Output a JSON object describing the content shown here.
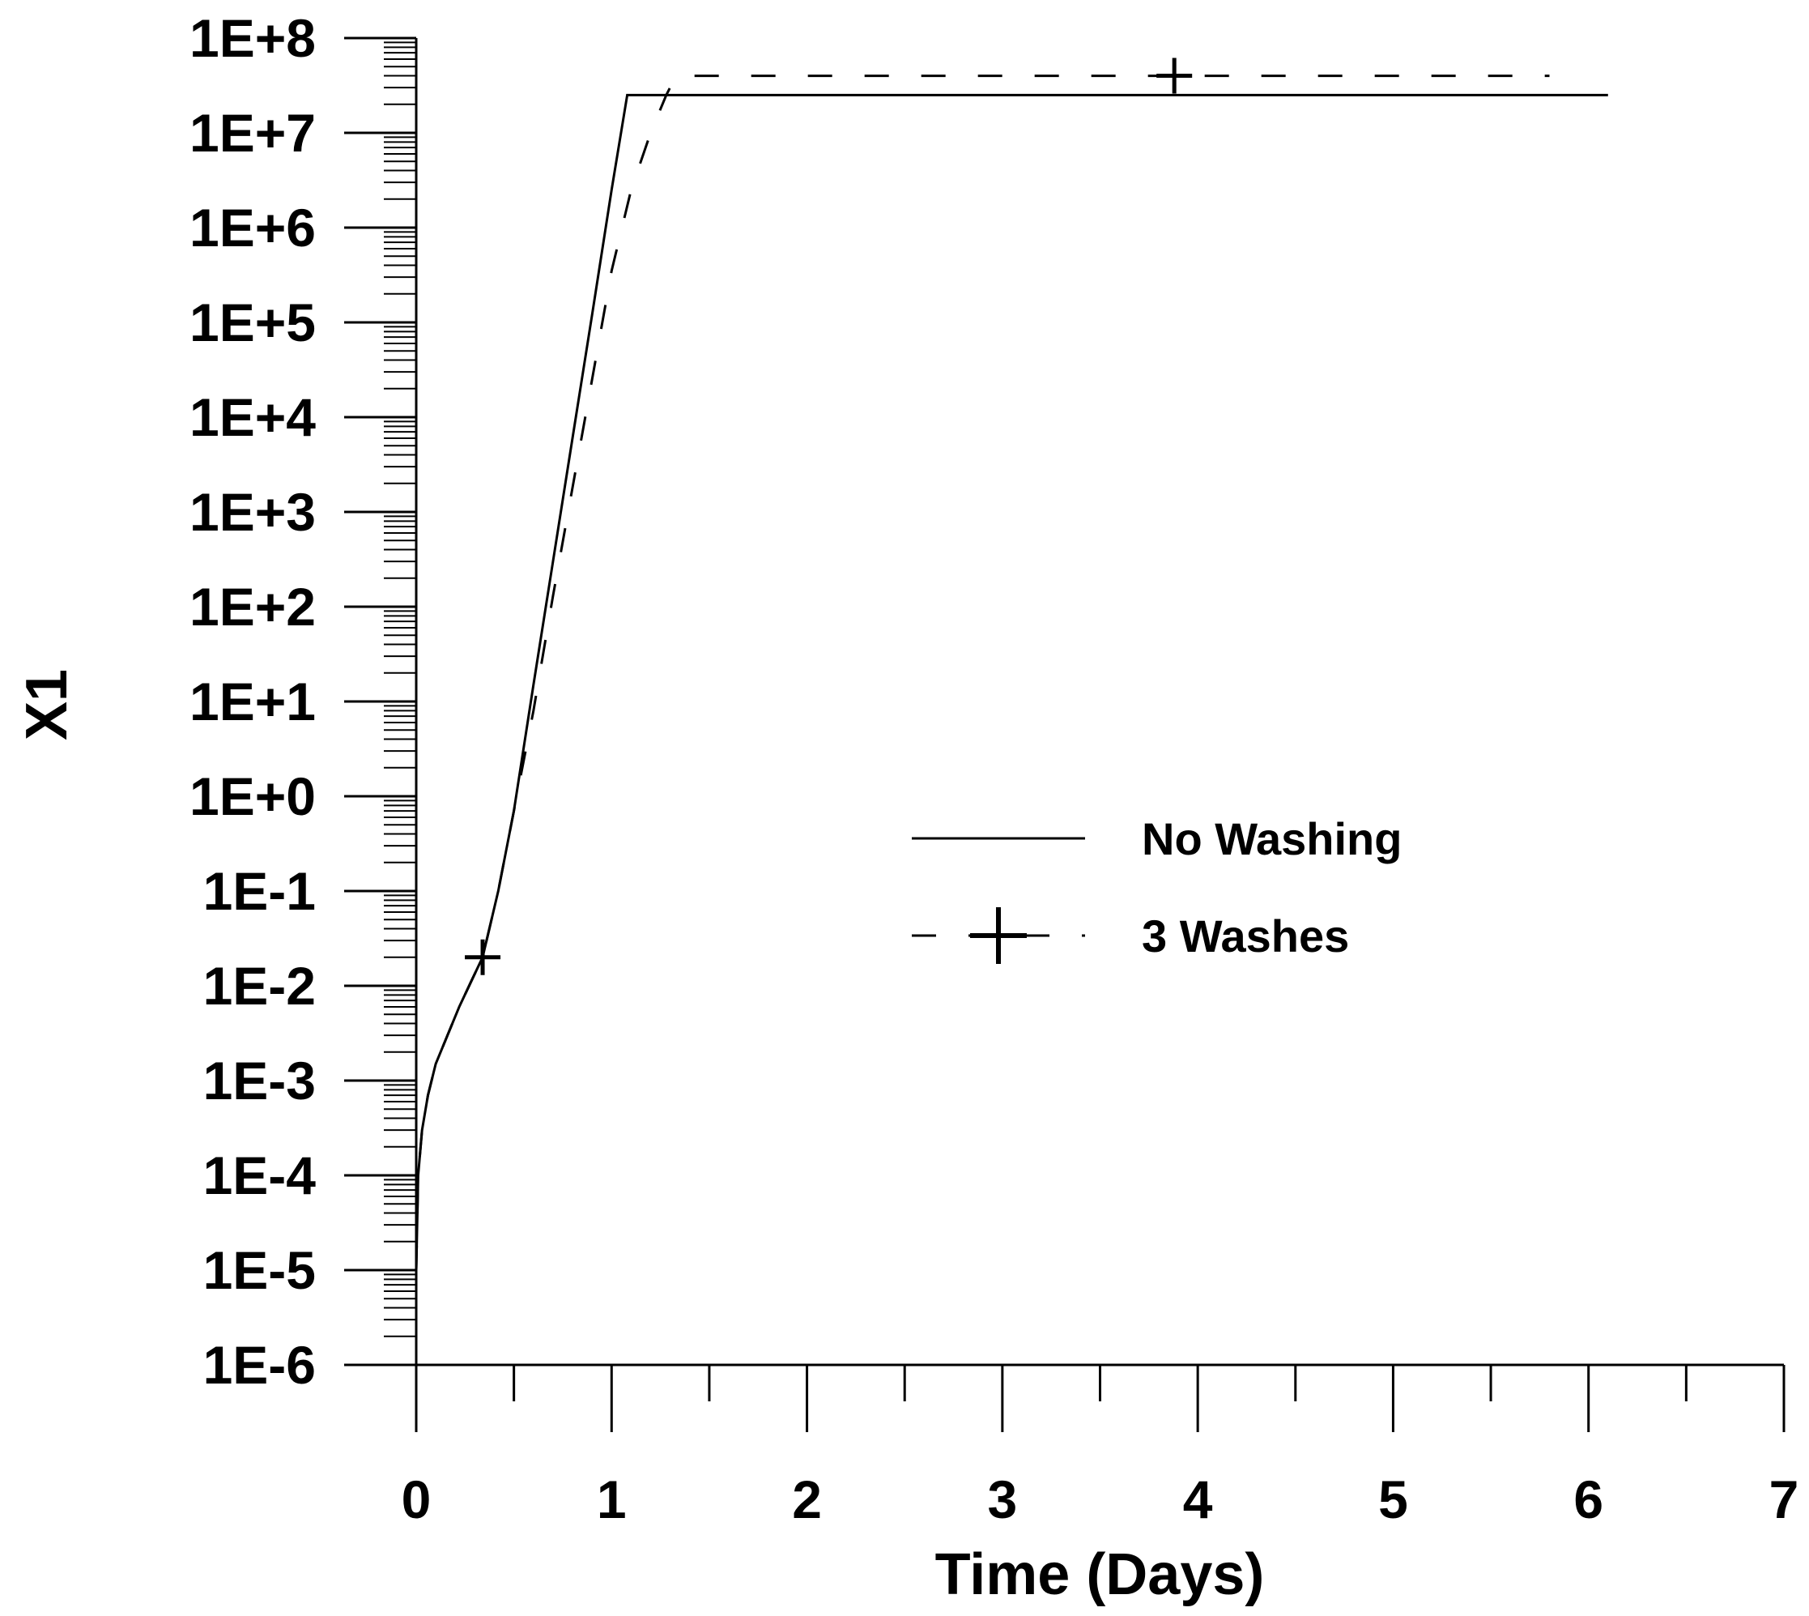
{
  "chart_data": {
    "type": "line",
    "title": "",
    "xlabel": "Time (Days)",
    "ylabel": "X1",
    "xlim": [
      0,
      7
    ],
    "ylim": [
      1e-06,
      100000000.0
    ],
    "yscale": "log",
    "x_ticks": [
      "0",
      "1",
      "2",
      "3",
      "4",
      "5",
      "6",
      "7"
    ],
    "y_ticks": [
      "1E+8",
      "1E+7",
      "1E+6",
      "1E+5",
      "1E+4",
      "1E+3",
      "1E+2",
      "1E+1",
      "1E+0",
      "1E-1",
      "1E-2",
      "1E-3",
      "1E-4",
      "1E-5",
      "1E-6"
    ],
    "legend": {
      "position": "center-right"
    },
    "series": [
      {
        "name": "No Washing",
        "style": "solid",
        "color": "#000000",
        "x": [
          0.0,
          0.01,
          0.03,
          0.06,
          0.1,
          0.16,
          0.22,
          0.28,
          0.34,
          0.42,
          0.5,
          0.6,
          0.7,
          0.8,
          0.9,
          1.0,
          1.08,
          2.0,
          3.0,
          4.0,
          5.0,
          6.1
        ],
        "y": [
          1e-05,
          0.0001,
          0.0003,
          0.0007,
          0.0015,
          0.003,
          0.006,
          0.011,
          0.02,
          0.1,
          0.7,
          15,
          300,
          6000,
          120000,
          2500000,
          25000000,
          25000000,
          25000000,
          25000000,
          25000000,
          25000000
        ]
      },
      {
        "name": "3 Washes",
        "style": "dashed",
        "color": "#000000",
        "marker": "+",
        "x": [
          0.0,
          0.01,
          0.03,
          0.06,
          0.1,
          0.16,
          0.22,
          0.28,
          0.34,
          0.42,
          0.5,
          0.6,
          0.7,
          0.8,
          0.9,
          1.0,
          1.1,
          1.2,
          1.28,
          1.33,
          2.0,
          3.0,
          3.88,
          5.0,
          5.8
        ],
        "y": [
          1e-05,
          0.0001,
          0.0003,
          0.0007,
          0.0015,
          0.003,
          0.006,
          0.011,
          0.02,
          0.1,
          0.7,
          8,
          130,
          1800,
          25000,
          350000,
          2500000,
          10000000,
          25000000,
          40000000,
          40000000,
          40000000,
          40000000,
          40000000,
          40000000
        ],
        "marker_x": [
          0.34,
          3.88
        ],
        "marker_y": [
          0.02,
          40000000
        ]
      }
    ]
  }
}
